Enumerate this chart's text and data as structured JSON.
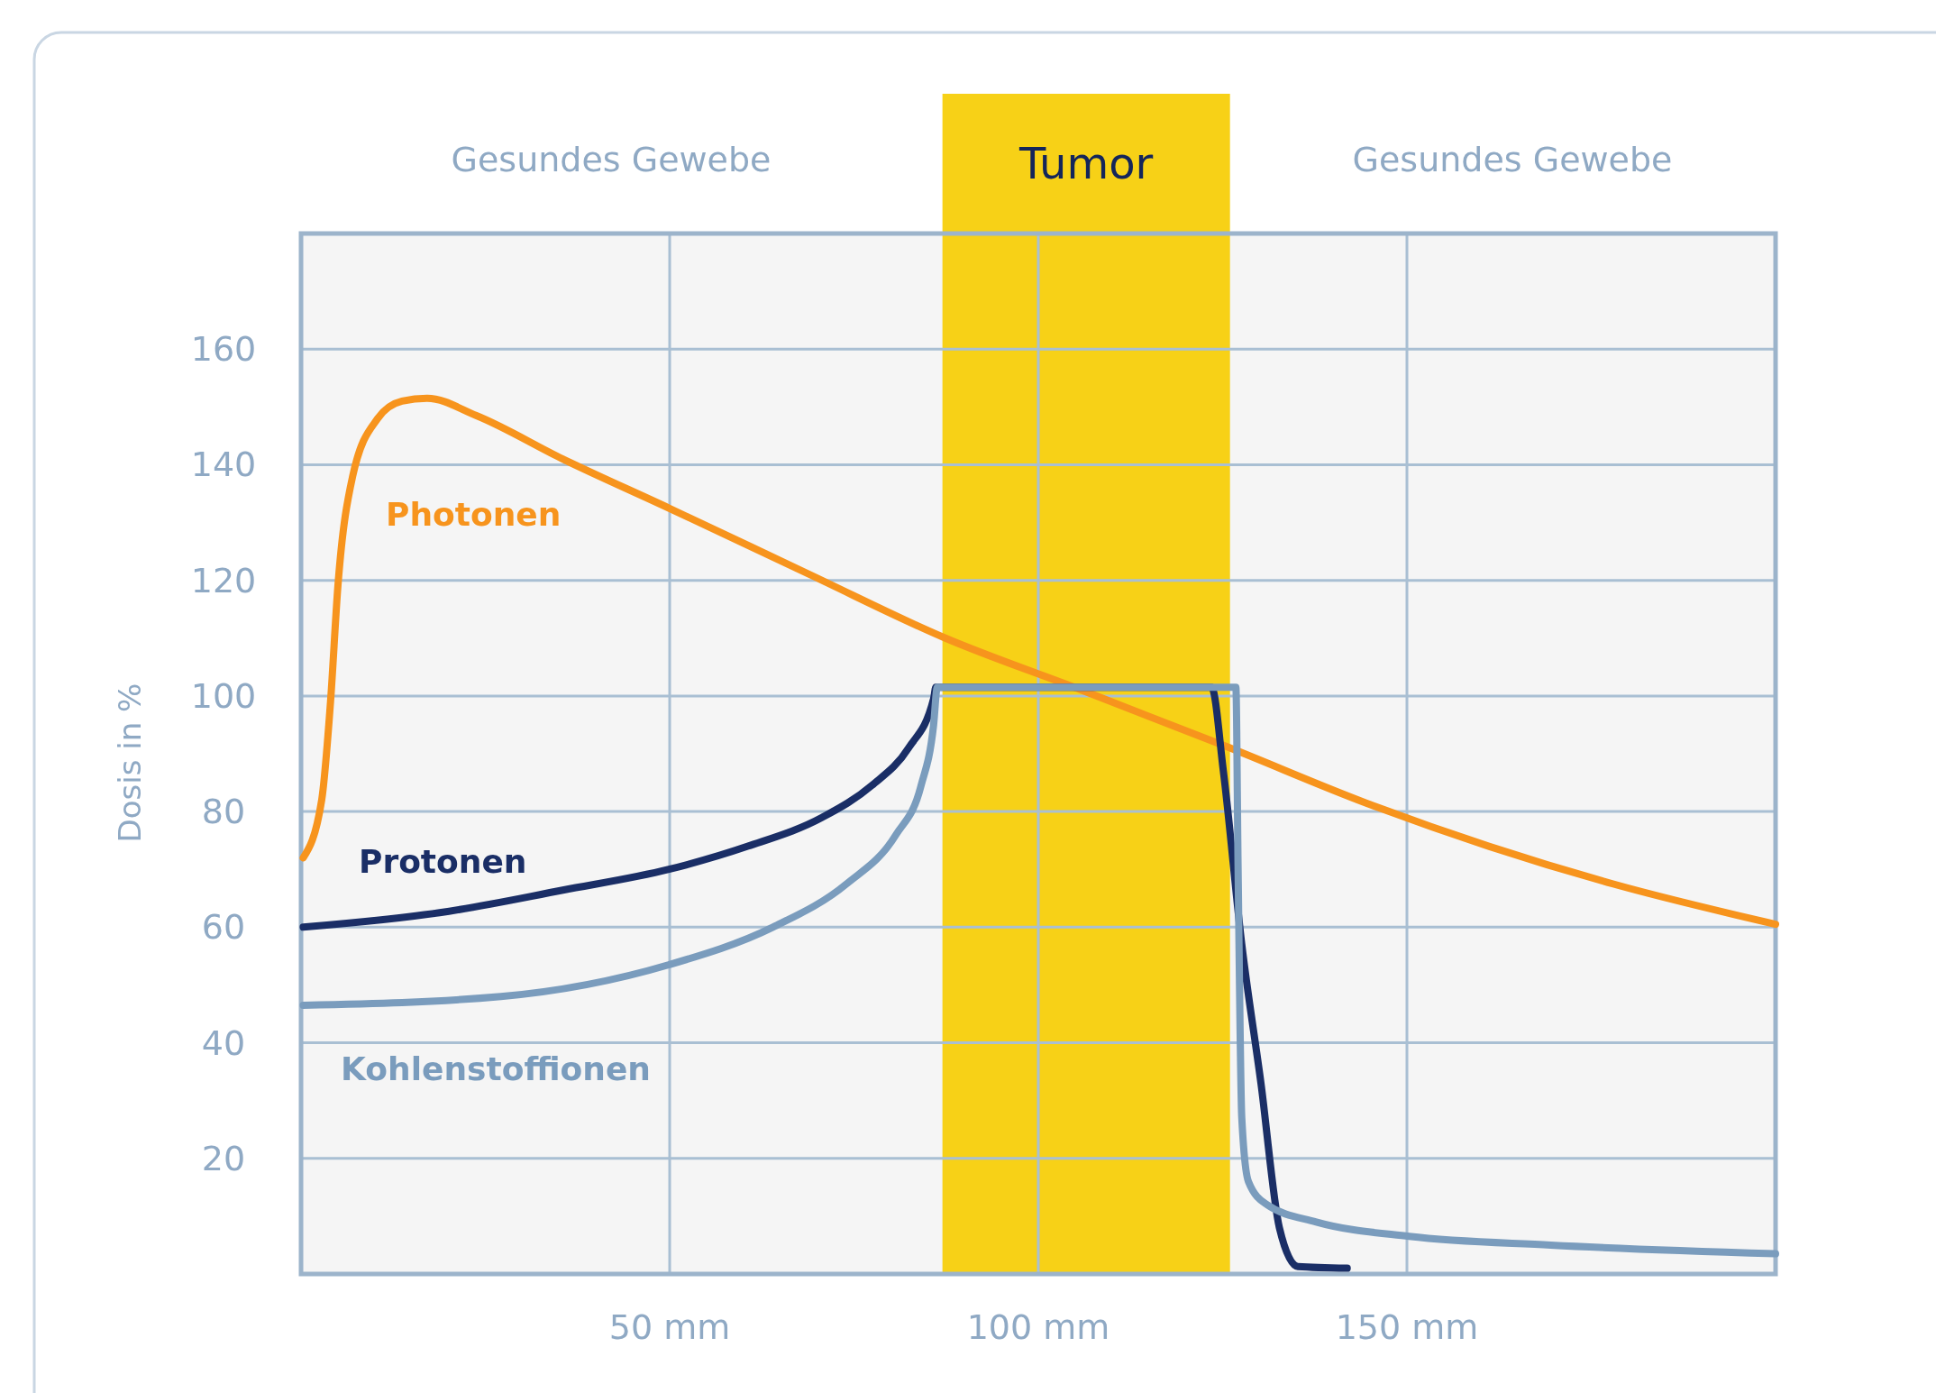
{
  "chart_data": {
    "type": "line",
    "ylabel": "Dosis in %",
    "xlim": [
      0,
      200
    ],
    "ylim": [
      0,
      180
    ],
    "xticks": [
      {
        "value": 50,
        "label": "50 mm"
      },
      {
        "value": 100,
        "label": "100 mm"
      },
      {
        "value": 150,
        "label": "150 mm"
      }
    ],
    "yticks": [
      20,
      40,
      60,
      80,
      100,
      120,
      140,
      160
    ],
    "grid": true,
    "line_style": "solid",
    "bands": [
      {
        "axis": "x",
        "from": 87,
        "to": 126,
        "label": "Tumor",
        "color": "#f7d117"
      }
    ],
    "annotations": [
      "Gesundes Gewebe",
      "Gesundes Gewebe"
    ],
    "series": [
      {
        "name": "Photonen",
        "color": "#f7941d",
        "x": [
          0.3,
          2.8,
          4,
          5,
          7,
          10.4,
          13.7,
          17.1,
          23.8,
          35.5,
          49.9,
          69,
          87.4,
          105.9,
          126,
          144.4,
          161.1,
          177.9,
          200
        ],
        "values": [
          72,
          82,
          99,
          119,
          138,
          148,
          151,
          151.5,
          148.5,
          141,
          132.5,
          121,
          110,
          101,
          91,
          81.5,
          74,
          67.5,
          60.5
        ]
      },
      {
        "name": "Protonen",
        "color": "#1a2e66",
        "x": [
          0.3,
          18.8,
          35.5,
          49.9,
          60.6,
          70.7,
          77.4,
          82.4,
          85.8,
          86.1,
          123.5,
          125.1,
          127.6,
          130.2,
          132.7,
          135.2,
          141.9
        ],
        "values": [
          60,
          62.5,
          66.4,
          70,
          74,
          79,
          84.5,
          91,
          99.5,
          101.5,
          101.5,
          87,
          57,
          33,
          8,
          1.3,
          1
        ]
      },
      {
        "name": "Kohlenstoffionen",
        "color": "#7a9cbd",
        "x": [
          0.3,
          27.1,
          49.9,
          64,
          74,
          80.7,
          84.1,
          85.8,
          86.3,
          126.8,
          127.1,
          127.6,
          128.5,
          131,
          137.7,
          150.3,
          169.5,
          200
        ],
        "values": [
          46.5,
          48,
          53.5,
          60,
          67.5,
          76,
          84.5,
          95,
          101.5,
          101.5,
          70,
          27,
          16,
          12,
          9,
          6.5,
          5,
          3.5
        ]
      }
    ]
  }
}
